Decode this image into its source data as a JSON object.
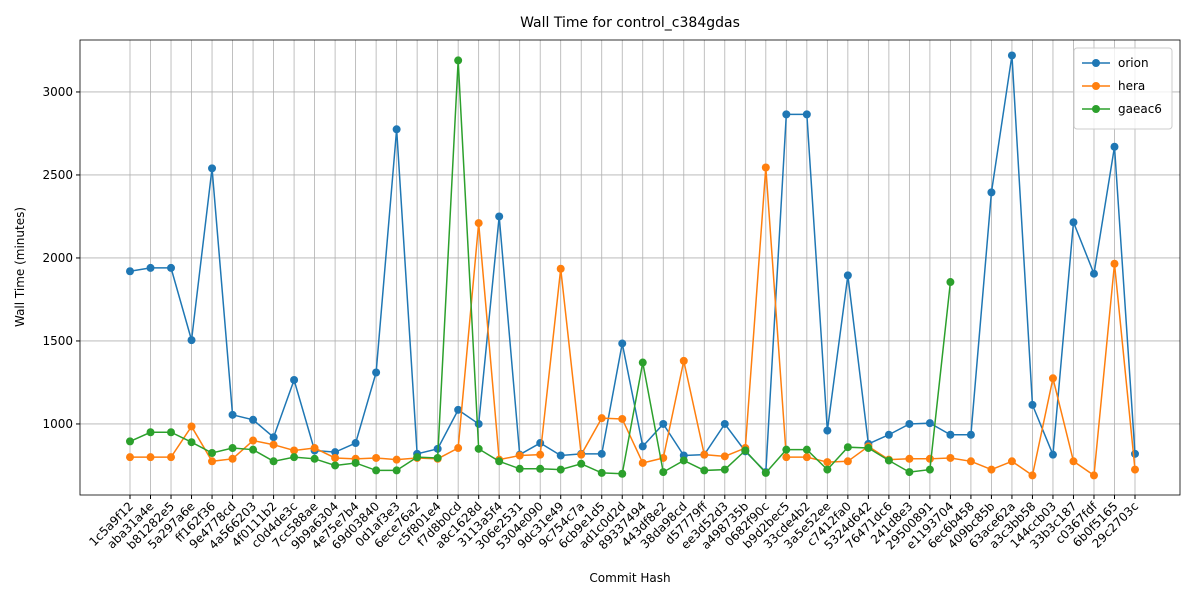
{
  "chart_data": {
    "type": "line",
    "title": "Wall Time for control_c384gdas",
    "x_label": "Commit Hash",
    "y_label": "Wall Time (minutes)",
    "categories": [
      "1c5a9f12",
      "aba31a4e",
      "b81282e5",
      "5a297a6e",
      "ff162f36",
      "9e4778cd",
      "4a566203",
      "4f0111b2",
      "c0d4de3c",
      "7cc588ae",
      "9b9a6304",
      "4e75e7b4",
      "69d03840",
      "0d1af3e3",
      "6ece76a2",
      "c5f801e4",
      "f7d8b0cd",
      "a8c1628d",
      "3113a5f4",
      "306e2531",
      "5304e090",
      "9dc31e49",
      "9c754c7a",
      "6cb9e1d5",
      "ad1c0d2d",
      "89337494",
      "443df8e2",
      "38da98cd",
      "d57779ff",
      "ee3d52d3",
      "a498735b",
      "0682f90c",
      "b9d2bec5",
      "33cde4b2",
      "3a5e52ee",
      "c7412fa0",
      "5324d642",
      "76471dc6",
      "241d8e3",
      "29500891",
      "e1193704",
      "6ec6b458",
      "409bc85b",
      "63ace62a",
      "a3c3bb58",
      "144ccb03",
      "33b3c187",
      "c0367fdf",
      "6b0f5165",
      "29c2703c"
    ],
    "series": [
      {
        "name": "orion",
        "color": "#1f77b4",
        "values": [
          1920,
          1940,
          1940,
          1505,
          2540,
          1055,
          1025,
          920,
          1265,
          840,
          830,
          885,
          1310,
          2775,
          820,
          850,
          1085,
          1000,
          2250,
          815,
          885,
          810,
          820,
          820,
          1485,
          865,
          1000,
          810,
          815,
          1000,
          835,
          710,
          2865,
          2865,
          960,
          1895,
          880,
          935,
          1000,
          1005,
          935,
          935,
          2395,
          3220,
          1115,
          815,
          2215,
          1905,
          2670,
          820
        ]
      },
      {
        "name": "hera",
        "color": "#ff7f0e",
        "values": [
          800,
          800,
          800,
          985,
          775,
          790,
          900,
          875,
          840,
          855,
          795,
          790,
          795,
          785,
          795,
          790,
          855,
          2210,
          785,
          810,
          815,
          1935,
          815,
          1035,
          1030,
          765,
          795,
          1380,
          815,
          805,
          855,
          2545,
          800,
          800,
          770,
          775,
          865,
          785,
          790,
          790,
          795,
          775,
          725,
          775,
          690,
          1275,
          775,
          690,
          1965,
          725
        ]
      },
      {
        "name": "gaeac6",
        "color": "#2ca02c",
        "values": [
          895,
          950,
          950,
          890,
          825,
          855,
          845,
          775,
          800,
          790,
          750,
          765,
          720,
          720,
          800,
          795,
          3190,
          850,
          775,
          730,
          730,
          725,
          760,
          705,
          700,
          1370,
          710,
          780,
          720,
          725,
          840,
          705,
          845,
          845,
          725,
          860,
          855,
          780,
          710,
          725,
          1855,
          null,
          null,
          null,
          null,
          null,
          null,
          null,
          null,
          null
        ]
      }
    ],
    "ylim": [
      572,
      3313
    ],
    "yticks": [
      1000,
      1500,
      2000,
      2500,
      3000
    ],
    "grid": true,
    "legend": "upper right"
  }
}
